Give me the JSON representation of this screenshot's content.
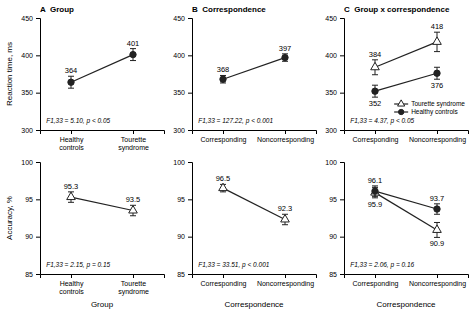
{
  "chart_data": [
    {
      "type": "line",
      "title": "A  Group",
      "y_label": "Reaction time, ms",
      "categories": [
        "Healthy\ncontrols",
        "Tourette\nsyndrome"
      ],
      "series": [
        {
          "values": [
            364,
            401
          ],
          "errors": [
            8,
            8
          ],
          "marker": "filled-circle"
        }
      ],
      "annotation": "F1,33 = 5.10, p < 0.05",
      "ylim": [
        300,
        450
      ],
      "yticks": [
        300,
        350,
        400,
        450
      ],
      "data_labels": true
    },
    {
      "type": "line",
      "title": "B  Correspondence",
      "categories": [
        "Corresponding",
        "Noncorresponding"
      ],
      "series": [
        {
          "values": [
            368,
            397
          ],
          "errors": [
            5,
            5
          ],
          "marker": "filled-circle"
        }
      ],
      "annotation": "F1,33 = 127.22, p < 0.001",
      "ylim": [
        300,
        450
      ],
      "yticks": [
        300,
        350,
        400,
        450
      ],
      "data_labels": true
    },
    {
      "type": "line",
      "title": "C  Group x correspondence",
      "categories": [
        "Corresponding",
        "Noncorresponding"
      ],
      "series": [
        {
          "name": "Tourette syndrome",
          "values": [
            384,
            418
          ],
          "errors": [
            10,
            13
          ],
          "marker": "open-triangle"
        },
        {
          "name": "Healthy controls",
          "values": [
            352,
            376
          ],
          "errors": [
            8,
            8
          ],
          "marker": "filled-circle"
        }
      ],
      "annotation": "F1,33 = 4.37, p < 0.05",
      "ylim": [
        300,
        450
      ],
      "yticks": [
        300,
        350,
        400,
        450
      ],
      "data_labels": true,
      "legend": "lower right"
    },
    {
      "type": "line",
      "y_label": "Accuracy, %",
      "x_label": "Group",
      "categories": [
        "Healthy\ncontrols",
        "Tourette\nsyndrome"
      ],
      "series": [
        {
          "values": [
            95.3,
            93.5
          ],
          "errors": [
            0.7,
            0.7
          ],
          "marker": "open-triangle"
        }
      ],
      "annotation": "F1,33 = 2.15, p = 0.15",
      "ylim": [
        85,
        100
      ],
      "yticks": [
        85,
        90,
        95,
        100
      ],
      "data_labels": true
    },
    {
      "type": "line",
      "x_label": "Correspondence",
      "categories": [
        "Corresponding",
        "Noncorresponding"
      ],
      "series": [
        {
          "values": [
            96.5,
            92.3
          ],
          "errors": [
            0.5,
            0.7
          ],
          "marker": "open-triangle"
        }
      ],
      "annotation": "F1,33 = 33.51, p < 0.001",
      "ylim": [
        85,
        100
      ],
      "yticks": [
        85,
        90,
        95,
        100
      ],
      "data_labels": true
    },
    {
      "type": "line",
      "x_label": "Correspondence",
      "categories": [
        "Corresponding",
        "Noncorresponding"
      ],
      "series": [
        {
          "values": [
            95.9,
            90.9
          ],
          "errors": [
            0.7,
            1.0
          ],
          "marker": "open-triangle"
        },
        {
          "values": [
            96.1,
            93.7
          ],
          "errors": [
            0.7,
            0.7
          ],
          "marker": "filled-circle"
        }
      ],
      "annotation": "F1,33 = 2.06, p = 0.16",
      "ylim": [
        85,
        100
      ],
      "yticks": [
        85,
        90,
        95,
        100
      ],
      "data_labels": true
    }
  ]
}
